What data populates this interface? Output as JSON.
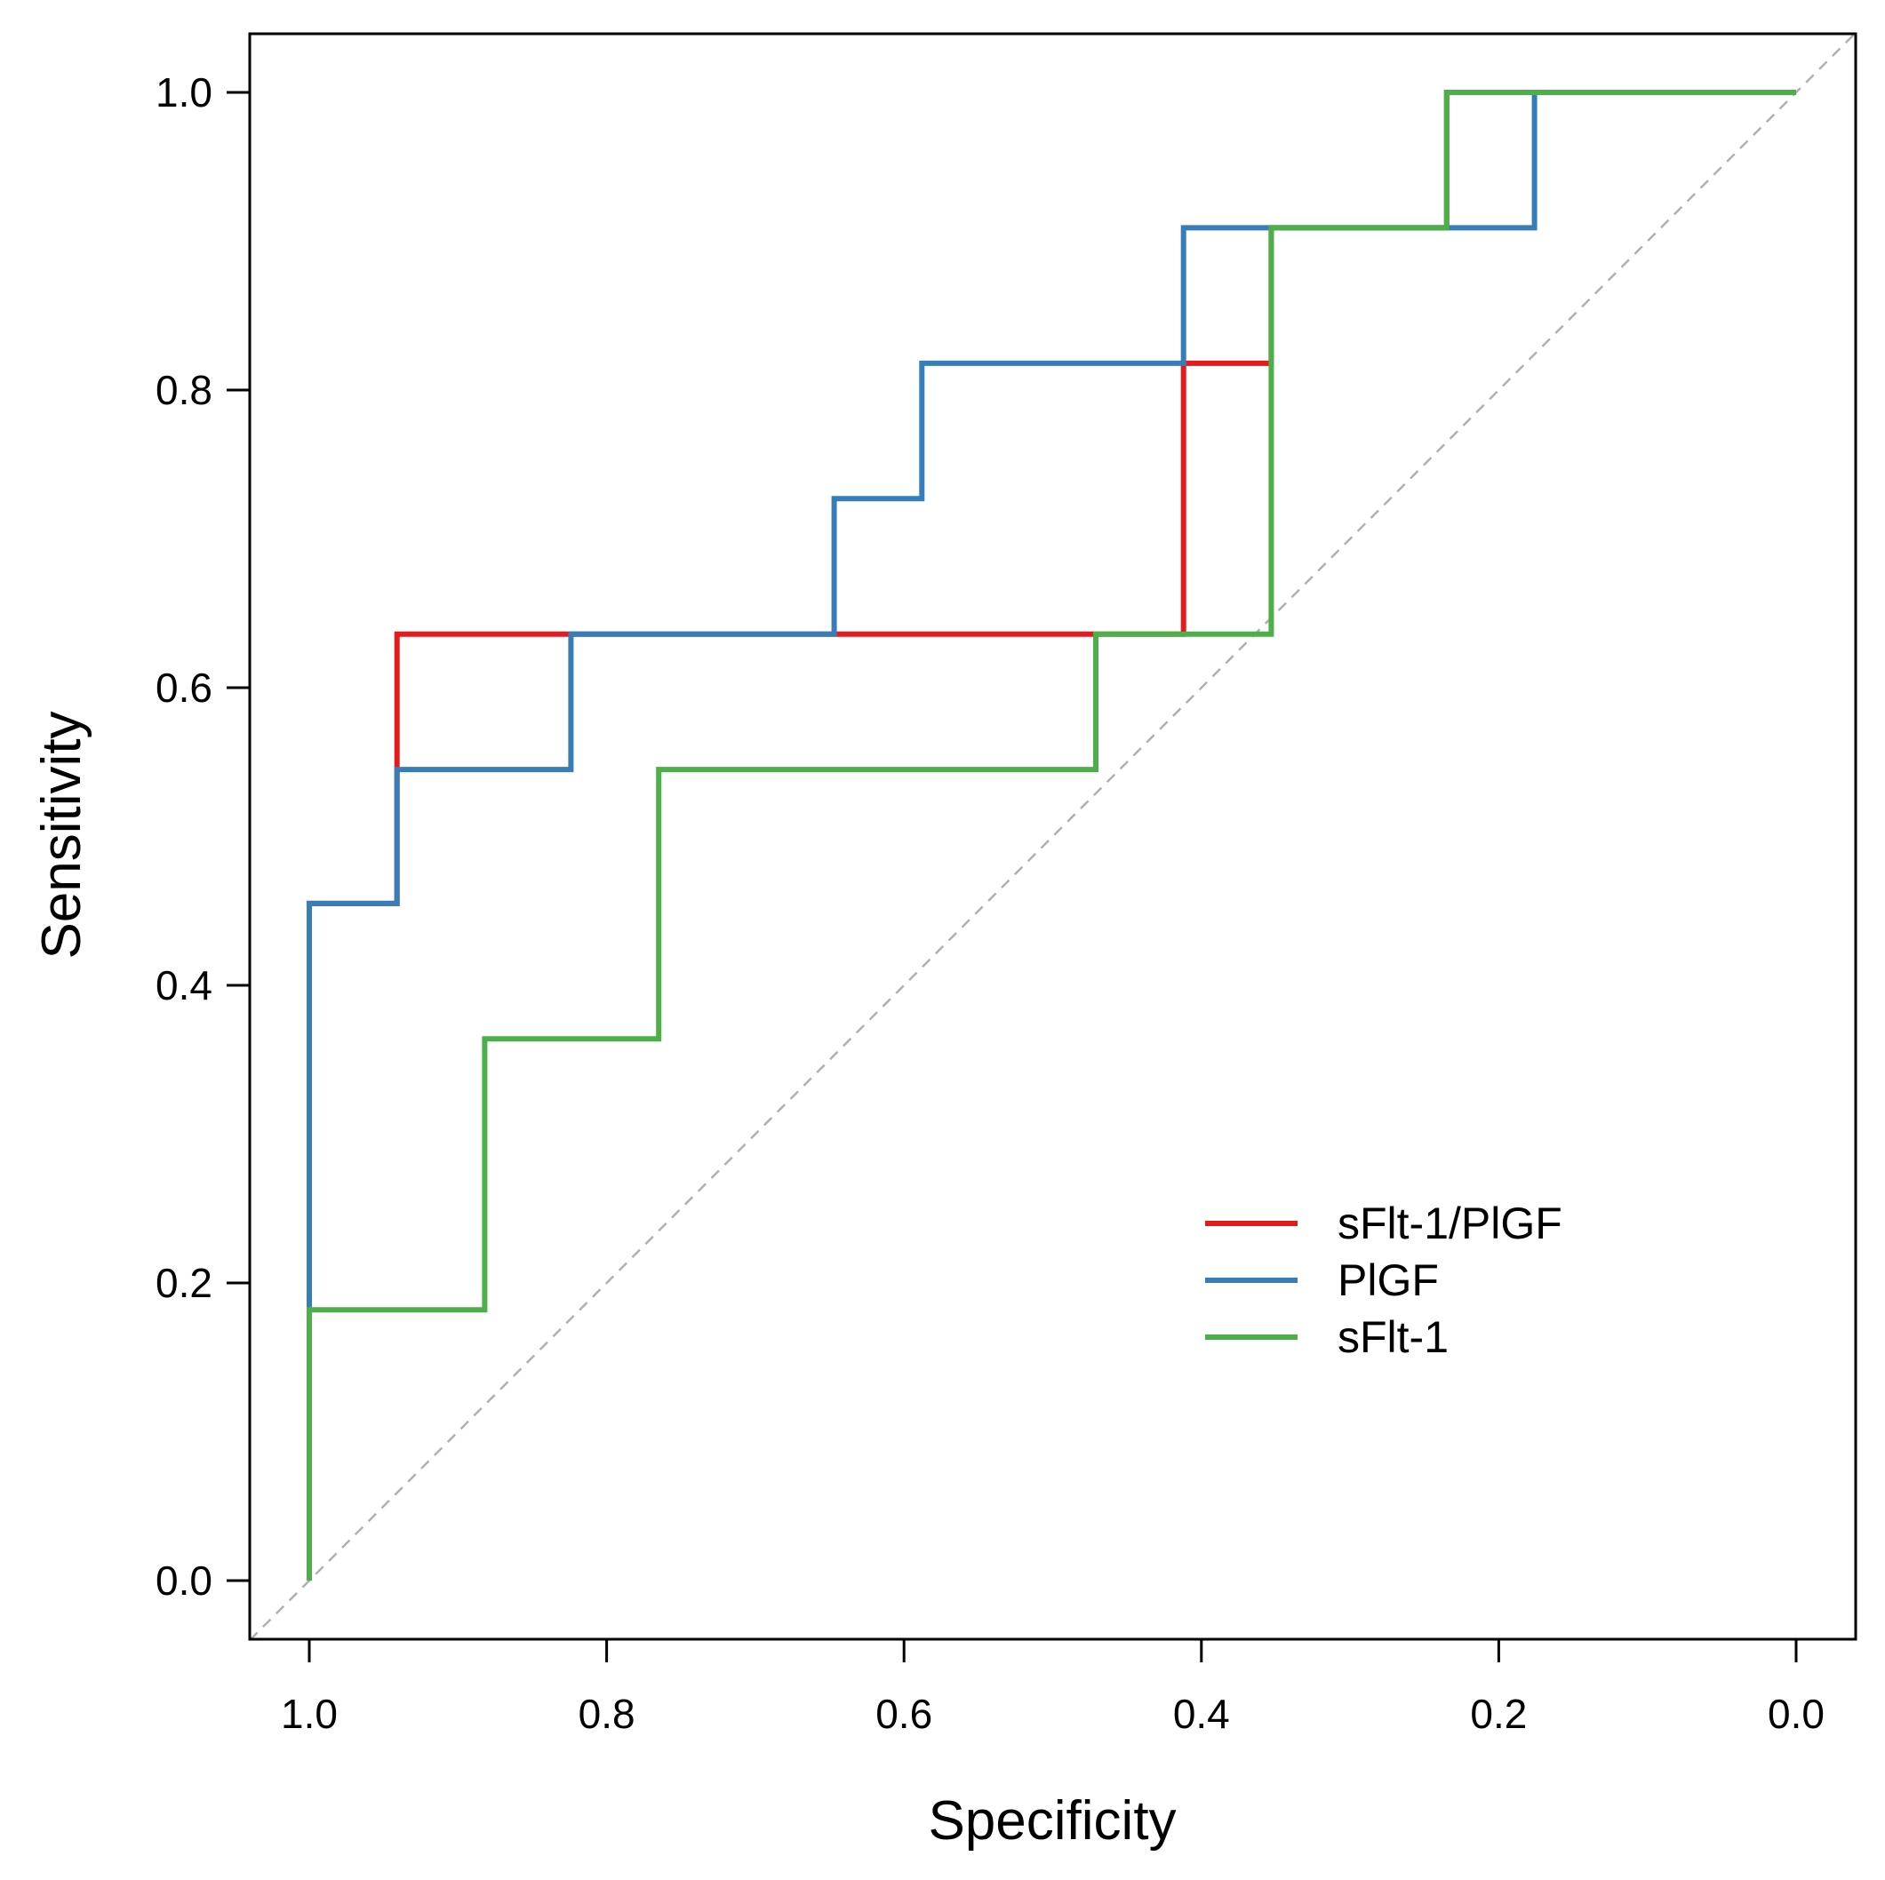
{
  "chart_data": {
    "type": "line",
    "title": "",
    "xlabel": "Specificity",
    "ylabel": "Sensitivity",
    "xlim": [
      1.0,
      0.0
    ],
    "ylim": [
      0.0,
      1.0
    ],
    "x_reversed": true,
    "grid": false,
    "legend_position": "bottom-right",
    "xticks": [
      "1.0",
      "0.8",
      "0.6",
      "0.4",
      "0.2",
      "0.0"
    ],
    "yticks": [
      "0.0",
      "0.2",
      "0.4",
      "0.6",
      "0.8",
      "1.0"
    ],
    "reference_line": {
      "from": [
        1.0,
        0.0
      ],
      "to": [
        0.0,
        1.0
      ],
      "style": "dashed",
      "color": "#b0b0b0"
    },
    "series": [
      {
        "name": "sFlt-1/PlGF",
        "color": "#e41a1c",
        "points": [
          [
            1.0,
            0.0
          ],
          [
            1.0,
            0.182
          ],
          [
            1.0,
            0.455
          ],
          [
            0.941,
            0.455
          ],
          [
            0.941,
            0.545
          ],
          [
            0.941,
            0.636
          ],
          [
            0.824,
            0.636
          ],
          [
            0.647,
            0.636
          ],
          [
            0.471,
            0.636
          ],
          [
            0.412,
            0.636
          ],
          [
            0.412,
            0.818
          ],
          [
            0.353,
            0.818
          ],
          [
            0.353,
            0.909
          ],
          [
            0.235,
            0.909
          ],
          [
            0.235,
            1.0
          ],
          [
            0.0,
            1.0
          ]
        ]
      },
      {
        "name": "PlGF",
        "color": "#377eb8",
        "points": [
          [
            1.0,
            0.0
          ],
          [
            1.0,
            0.182
          ],
          [
            1.0,
            0.455
          ],
          [
            0.941,
            0.455
          ],
          [
            0.941,
            0.545
          ],
          [
            0.824,
            0.545
          ],
          [
            0.824,
            0.636
          ],
          [
            0.647,
            0.636
          ],
          [
            0.647,
            0.727
          ],
          [
            0.588,
            0.727
          ],
          [
            0.588,
            0.818
          ],
          [
            0.412,
            0.818
          ],
          [
            0.412,
            0.909
          ],
          [
            0.176,
            0.909
          ],
          [
            0.176,
            1.0
          ],
          [
            0.0,
            1.0
          ]
        ]
      },
      {
        "name": "sFlt-1",
        "color": "#4daf4a",
        "points": [
          [
            1.0,
            0.0
          ],
          [
            1.0,
            0.182
          ],
          [
            0.882,
            0.182
          ],
          [
            0.882,
            0.364
          ],
          [
            0.765,
            0.364
          ],
          [
            0.765,
            0.545
          ],
          [
            0.471,
            0.545
          ],
          [
            0.471,
            0.636
          ],
          [
            0.353,
            0.636
          ],
          [
            0.353,
            0.909
          ],
          [
            0.235,
            0.909
          ],
          [
            0.235,
            1.0
          ],
          [
            0.0,
            1.0
          ]
        ]
      }
    ]
  }
}
